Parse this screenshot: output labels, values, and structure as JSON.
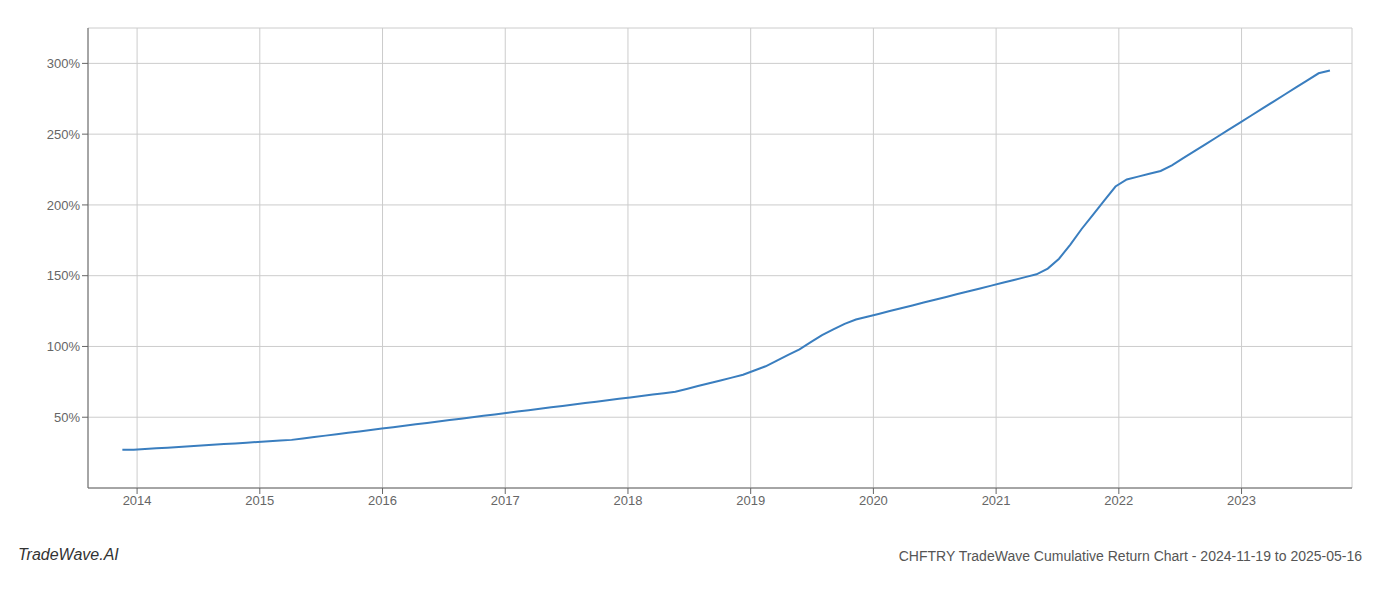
{
  "chart_data": {
    "type": "line",
    "title": "CHFTRY TradeWave Cumulative Return Chart - 2024-11-19 to 2025-05-16",
    "annotations": [
      {
        "text": "TradeWave.AI"
      }
    ],
    "color": "#3a7ebf",
    "grid": true,
    "xlim": [
      2013.6,
      2023.9
    ],
    "xticks": [
      2014,
      2015,
      2016,
      2017,
      2018,
      2019,
      2020,
      2021,
      2022,
      2023
    ],
    "ylim": [
      0,
      325
    ],
    "yticks": [
      {
        "value": 50,
        "label": "50%"
      },
      {
        "value": 100,
        "label": "100%"
      },
      {
        "value": 150,
        "label": "150%"
      },
      {
        "value": 200,
        "label": "200%"
      },
      {
        "value": 250,
        "label": "250%"
      },
      {
        "value": 300,
        "label": "300%"
      }
    ],
    "x": [
      2013.88,
      2013.972,
      2014.0639,
      2014.1559,
      2014.2479,
      2014.3398,
      2014.4318,
      2014.5237,
      2014.6157,
      2014.7077,
      2014.7996,
      2014.8916,
      2014.9836,
      2015.0755,
      2015.1675,
      2015.2594,
      2015.3514,
      2015.4434,
      2015.5353,
      2015.6273,
      2015.7193,
      2015.8112,
      2015.9032,
      2015.9951,
      2016.0871,
      2016.1791,
      2016.271,
      2016.363,
      2016.455,
      2016.5469,
      2016.6389,
      2016.7308,
      2016.8228,
      2016.9148,
      2017.0067,
      2017.0987,
      2017.1907,
      2017.2826,
      2017.3746,
      2017.4665,
      2017.5585,
      2017.6505,
      2017.7424,
      2017.8344,
      2017.9264,
      2018.0183,
      2018.1103,
      2018.2022,
      2018.2942,
      2018.3862,
      2018.4781,
      2018.5701,
      2018.6621,
      2018.754,
      2018.846,
      2018.9379,
      2019.0299,
      2019.1219,
      2019.2138,
      2019.3058,
      2019.3978,
      2019.4897,
      2019.5817,
      2019.6736,
      2019.7656,
      2019.8576,
      2019.9495,
      2020.0415,
      2020.1335,
      2020.2254,
      2020.3174,
      2020.4093,
      2020.5013,
      2020.5933,
      2020.6852,
      2020.7772,
      2020.8692,
      2020.9611,
      2021.0531,
      2021.145,
      2021.237,
      2021.329,
      2021.4209,
      2021.5129,
      2021.6049,
      2021.6968,
      2021.7888,
      2021.8807,
      2021.9727,
      2022.0647,
      2022.1566,
      2022.2486,
      2022.3406,
      2022.4325,
      2022.5245,
      2022.6164,
      2022.7084,
      2022.8004,
      2022.8923,
      2022.9843,
      2023.0763,
      2023.1682,
      2023.2602,
      2023.3521,
      2023.4441,
      2023.5361,
      2023.628,
      2023.72
    ],
    "values": [
      27,
      27,
      27.5,
      28,
      28.5,
      29,
      29.5,
      30,
      30.5,
      31,
      31.5,
      32,
      32.5,
      33,
      33.5,
      34,
      35,
      36,
      37,
      38,
      39,
      40,
      41,
      42,
      43,
      44,
      45,
      46,
      47,
      48,
      49,
      50,
      51,
      52,
      53,
      54,
      55,
      56,
      57,
      58,
      59,
      60,
      61,
      62,
      63,
      64,
      65,
      66,
      67,
      68,
      70,
      72,
      74,
      76,
      78,
      80,
      83,
      86,
      90,
      94,
      98,
      103,
      108,
      112,
      116,
      119,
      121,
      123,
      125,
      127,
      129,
      131,
      133,
      135,
      137,
      139,
      141,
      143,
      145,
      147,
      149,
      151,
      155,
      162,
      172,
      183,
      193,
      203,
      213,
      218,
      220,
      222,
      224,
      228,
      233,
      238,
      243,
      248,
      253,
      258,
      263,
      268,
      273,
      278,
      283,
      288,
      293,
      295
    ]
  }
}
